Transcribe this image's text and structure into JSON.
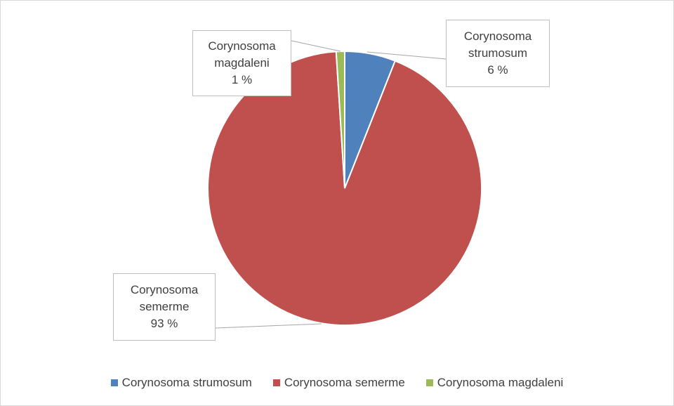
{
  "chart_data": {
    "type": "pie",
    "categories": [
      "Corynosoma strumosum",
      "Corynosoma semerme",
      "Corynosoma magdaleni"
    ],
    "values": [
      6,
      93,
      1
    ],
    "value_labels": [
      "6 %",
      "93 %",
      "1 %"
    ],
    "colors": [
      "#4f81bd",
      "#c0504d",
      "#9bbb59"
    ],
    "legend": "bottom"
  }
}
